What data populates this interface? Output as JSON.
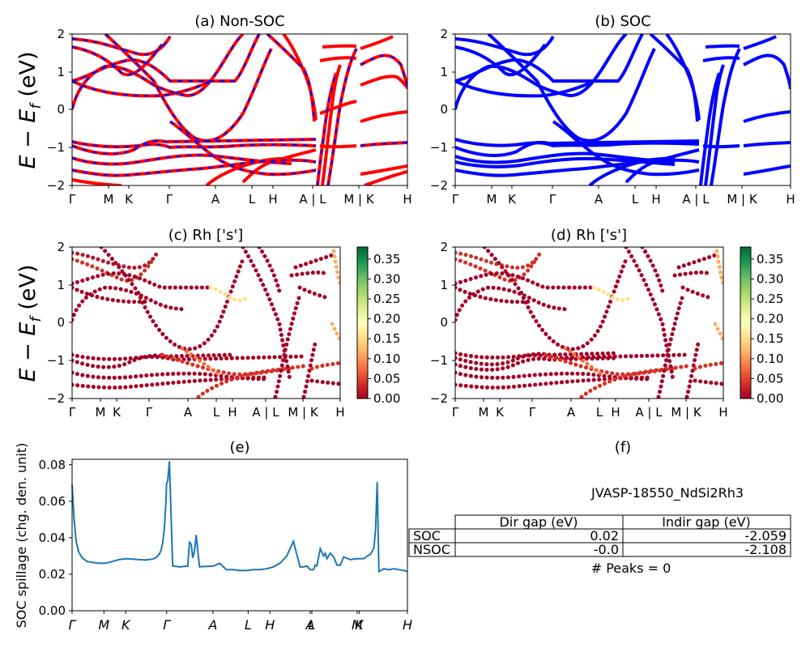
{
  "figure": {
    "panels": {
      "a": {
        "title": "(a) Non-SOC"
      },
      "b": {
        "title": "(b) SOC"
      },
      "c": {
        "title": "(c)  Rh ['s']"
      },
      "d": {
        "title": "(d) Rh ['s']"
      },
      "e": {
        "title": "(e)"
      },
      "f": {
        "title": "(f)"
      }
    },
    "band_ylabel": "E − E",
    "band_ylabel_sub": "f",
    "band_ylabel_unit": " (eV)",
    "spillage_ylabel": "SOC spillage (chg. den. unit)",
    "colorbar_ticks": [
      "0.00",
      "0.05",
      "0.10",
      "0.15",
      "0.20",
      "0.25",
      "0.30",
      "0.35"
    ],
    "jid_title": "JVASP-18550_NdSi2Rh3",
    "gap_table": {
      "col_labels": [
        "Dir gap (eV)",
        "Indir gap (eV)"
      ],
      "rows": [
        {
          "label": "SOC",
          "dir": "0.02",
          "indir": "-2.059"
        },
        {
          "label": "NSOC",
          "dir": "-0.0",
          "indir": "-2.108"
        }
      ]
    },
    "peaks_text": "# Peaks = 0"
  },
  "chart_data": [
    {
      "panel": "a",
      "type": "line",
      "title": "(a) Non-SOC",
      "ylabel": "E − E_f (eV)",
      "ylim": [
        -2,
        2
      ],
      "yticks": [
        "2",
        "1",
        "0",
        "−1",
        "−2"
      ],
      "xticks": [
        "Γ",
        "M",
        "K",
        "Γ",
        "A",
        "L",
        "H",
        "A | L",
        "M | K",
        "H"
      ],
      "series_colors": [
        "#ff0000",
        "#0000ff"
      ],
      "line_style": "red solid overlaid with blue dashed (spin up / spin down)"
    },
    {
      "panel": "b",
      "type": "line",
      "title": "(b) SOC",
      "ylim": [
        -2,
        2
      ],
      "yticks": [
        "2",
        "1",
        "0",
        "−1",
        "−2"
      ],
      "xticks": [
        "Γ",
        "M",
        "K",
        "Γ",
        "A",
        "L",
        "H",
        "A | L",
        "M | K",
        "H"
      ],
      "series_colors": [
        "#0000ff"
      ]
    },
    {
      "panel": "c",
      "type": "scatter",
      "title": "(c)  Rh ['s']",
      "ylabel": "E − E_f (eV)",
      "ylim": [
        -2,
        2
      ],
      "xticks": [
        "Γ",
        "M",
        "K",
        "Γ",
        "A",
        "L",
        "H",
        "A | L",
        "M | K",
        "H"
      ],
      "colormap": "RdYlGn",
      "colorbar_range": [
        0.0,
        0.38
      ],
      "colorbar_ticks": [
        0.0,
        0.05,
        0.1,
        0.15,
        0.2,
        0.25,
        0.3,
        0.35
      ]
    },
    {
      "panel": "d",
      "type": "scatter",
      "title": "(d) Rh ['s']",
      "ylim": [
        -2,
        2
      ],
      "xticks": [
        "Γ",
        "M",
        "K",
        "Γ",
        "A",
        "L",
        "H",
        "A | L",
        "M | K",
        "H"
      ],
      "colormap": "RdYlGn",
      "colorbar_range": [
        0.0,
        0.38
      ],
      "colorbar_ticks": [
        0.0,
        0.05,
        0.1,
        0.15,
        0.2,
        0.25,
        0.3,
        0.35
      ]
    },
    {
      "panel": "e",
      "type": "line",
      "title": "(e)",
      "ylabel": "SOC spillage (chg. den. unit)",
      "ylim": [
        0.0,
        0.083
      ],
      "yticks": [
        "0.00",
        "0.02",
        "0.04",
        "0.06",
        "0.08"
      ],
      "xticks": [
        "Γ",
        "M",
        "K",
        "Γ",
        "A",
        "L",
        "H",
        "A",
        "L",
        "M",
        "K",
        "H"
      ],
      "color": "#1f77b4",
      "series": [
        {
          "x": [
            0,
            0.006,
            0.012,
            0.02,
            0.03,
            0.045,
            0.06,
            0.08,
            0.1,
            0.12,
            0.14,
            0.16,
            0.18,
            0.2,
            0.22,
            0.24,
            0.25,
            0.26,
            0.265,
            0.27,
            0.275,
            0.28,
            0.282,
            0.285,
            0.29,
            0.3,
            0.32,
            0.345,
            0.35,
            0.355,
            0.36,
            0.365,
            0.37,
            0.38,
            0.383,
            0.386,
            0.39,
            0.4,
            0.42,
            0.44,
            0.46,
            0.48,
            0.5,
            0.52,
            0.54,
            0.56,
            0.58,
            0.6,
            0.62,
            0.64,
            0.66,
            0.68,
            0.69,
            0.7,
            0.71,
            0.72,
            0.725,
            0.73,
            0.74,
            0.75,
            0.755,
            0.76,
            0.77,
            0.78,
            0.79,
            0.8,
            0.81,
            0.83,
            0.85,
            0.87,
            0.88,
            0.89,
            0.9,
            0.905,
            0.91,
            0.915,
            0.92,
            0.93,
            0.945,
            0.96,
            0.975,
            0.99,
            1.0
          ],
          "y": [
            0.069,
            0.05,
            0.038,
            0.032,
            0.029,
            0.027,
            0.0265,
            0.026,
            0.026,
            0.027,
            0.028,
            0.0285,
            0.0283,
            0.028,
            0.0278,
            0.0283,
            0.029,
            0.031,
            0.033,
            0.037,
            0.045,
            0.06,
            0.07,
            0.071,
            0.082,
            0.0245,
            0.024,
            0.0245,
            0.0375,
            0.0365,
            0.029,
            0.0325,
            0.0415,
            0.024,
            0.0241,
            0.0242,
            0.0242,
            0.0243,
            0.0244,
            0.026,
            0.0225,
            0.0225,
            0.022,
            0.022,
            0.0225,
            0.0225,
            0.023,
            0.024,
            0.026,
            0.03,
            0.038,
            0.024,
            0.024,
            0.0245,
            0.0225,
            0.0225,
            0.025,
            0.0245,
            0.034,
            0.03,
            0.0315,
            0.0285,
            0.0315,
            0.0295,
            0.025,
            0.025,
            0.0295,
            0.028,
            0.0285,
            0.0285,
            0.03,
            0.031,
            0.0345,
            0.045,
            0.0705,
            0.0215,
            0.022,
            0.023,
            0.0225,
            0.023,
            0.0225,
            0.022,
            0.0215
          ]
        }
      ]
    }
  ]
}
